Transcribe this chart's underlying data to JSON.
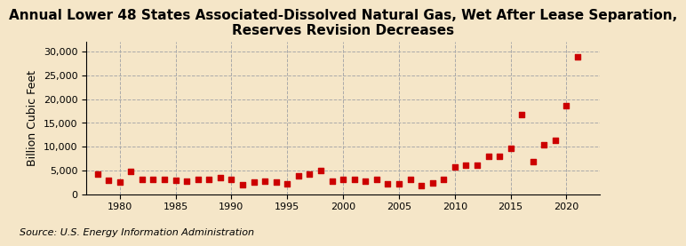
{
  "title": "Annual Lower 48 States Associated-Dissolved Natural Gas, Wet After Lease Separation,\nReserves Revision Decreases",
  "ylabel": "Billion Cubic Feet",
  "source": "Source: U.S. Energy Information Administration",
  "background_color": "#f5e6c8",
  "plot_background_color": "#f5e6c8",
  "grid_color": "#aaaaaa",
  "marker_color": "#cc0000",
  "years": [
    1978,
    1979,
    1980,
    1981,
    1982,
    1983,
    1984,
    1985,
    1986,
    1987,
    1988,
    1989,
    1990,
    1991,
    1992,
    1993,
    1994,
    1995,
    1996,
    1997,
    1998,
    1999,
    2000,
    2001,
    2002,
    2003,
    2004,
    2005,
    2006,
    2007,
    2008,
    2009,
    2010,
    2011,
    2012,
    2013,
    2014,
    2015,
    2016,
    2017,
    2018,
    2019,
    2020,
    2021
  ],
  "values": [
    4200,
    2900,
    2600,
    4700,
    3000,
    3000,
    3000,
    2900,
    2700,
    3000,
    3000,
    3500,
    3000,
    2000,
    2500,
    2700,
    2500,
    2200,
    3800,
    4200,
    5000,
    2800,
    3000,
    3000,
    2700,
    3000,
    2200,
    2200,
    3000,
    1700,
    2400,
    3000,
    5700,
    6000,
    6000,
    7900,
    8000,
    9700,
    16700,
    6900,
    10300,
    11300,
    18700,
    29000
  ],
  "xlim": [
    1977,
    2023
  ],
  "ylim": [
    0,
    32000
  ],
  "yticks": [
    0,
    5000,
    10000,
    15000,
    20000,
    25000,
    30000
  ],
  "xticks": [
    1980,
    1985,
    1990,
    1995,
    2000,
    2005,
    2010,
    2015,
    2020
  ],
  "marker_size": 4,
  "title_fontsize": 11,
  "axis_fontsize": 9,
  "tick_fontsize": 8,
  "source_fontsize": 8
}
